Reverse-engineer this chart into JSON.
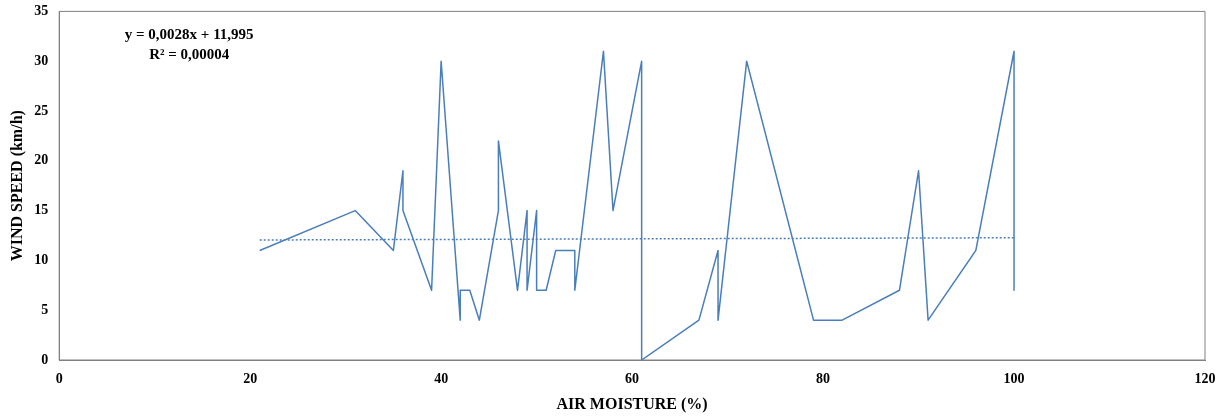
{
  "chart_data": {
    "type": "line",
    "xlabel": "AIR MOISTURE (%)",
    "ylabel": "WIND SPEED (km/h)",
    "xlim": [
      0,
      120
    ],
    "xticks": [
      0,
      20,
      40,
      60,
      80,
      100,
      120
    ],
    "ylim": [
      0,
      35
    ],
    "yticks": [
      0,
      5,
      10,
      15,
      20,
      25,
      30,
      35
    ],
    "grid": false,
    "legend": false,
    "marker": "none",
    "annotations": [
      "y = 0,0028x + 11,995",
      "R² = 0,00004"
    ],
    "series": [
      {
        "color": "#4a7ebb",
        "line_style": "solid",
        "x": [
          21,
          31,
          35,
          36,
          36,
          39,
          40,
          42,
          42,
          43,
          44,
          46,
          46,
          48,
          49,
          49,
          50,
          50,
          51,
          52,
          54,
          54,
          57,
          58,
          61,
          61,
          67,
          69,
          69,
          72,
          79,
          82,
          88,
          90,
          91,
          96,
          100,
          100
        ],
        "values": [
          11,
          15,
          11,
          19,
          15,
          7,
          30,
          4,
          7,
          7,
          4,
          15,
          22,
          7,
          15,
          7,
          15,
          7,
          7,
          11,
          11,
          7,
          31,
          15,
          30,
          0,
          4,
          11,
          4,
          30,
          4,
          4,
          7,
          19,
          4,
          11,
          31,
          7
        ]
      },
      {
        "type": "line",
        "color": "#4a7ebb",
        "line_style": "dotted",
        "x": [
          21,
          100
        ],
        "values": [
          12.05,
          12.275
        ]
      }
    ]
  }
}
